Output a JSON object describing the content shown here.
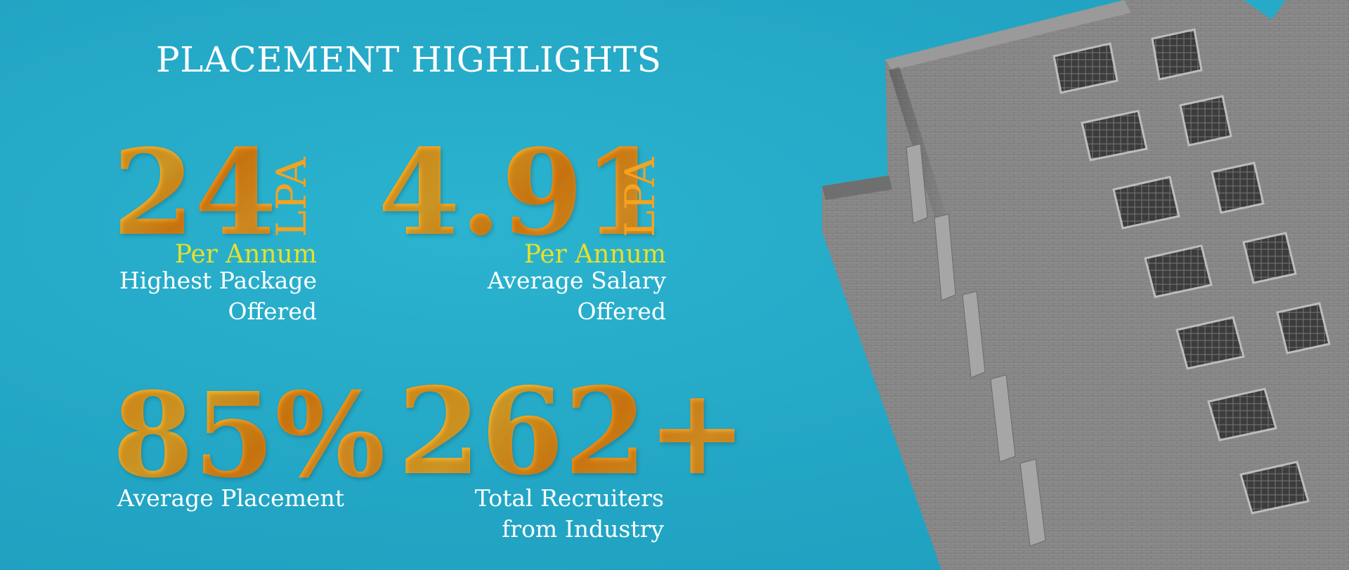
{
  "title": "PLACEMENT HIGHLIGHTS",
  "stats": [
    {
      "value": "24",
      "unit": "LPA",
      "sub": "Per Annum",
      "label_line1": "Highest Package",
      "label_line2": "Offered"
    },
    {
      "value": "4.91",
      "unit": "LPA",
      "sub": "Per Annum",
      "label_line1": "Average Salary",
      "label_line2": "Offered"
    },
    {
      "value": "85%",
      "label_line1": "Average Placement"
    },
    {
      "value": "262+",
      "label_line1": "Total Recruiters",
      "label_line2": "from Industry"
    }
  ],
  "colors": {
    "background": "#27aac8",
    "accent": "#f7a21c",
    "sub_accent": "#e6e02a",
    "text": "#ffffff"
  },
  "image": {
    "subject": "grayscale-building-photo"
  }
}
